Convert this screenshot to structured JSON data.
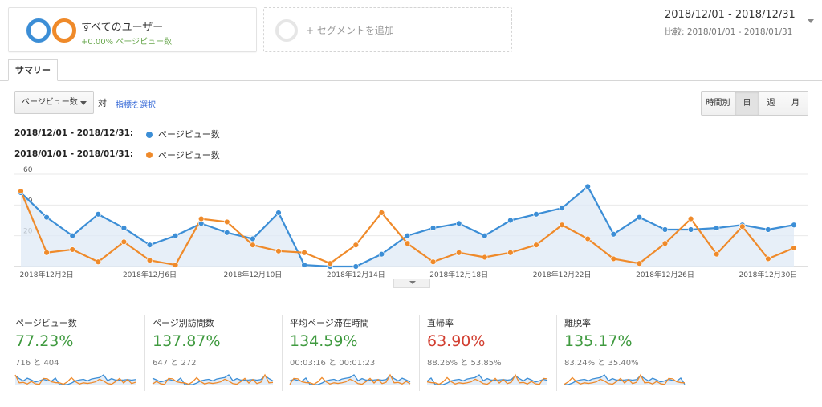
{
  "segments": {
    "all_users": {
      "title": "すべてのユーザー",
      "sub": "+0.00% ページビュー数"
    },
    "add_segment": {
      "label": "+ セグメントを追加"
    }
  },
  "date_range": {
    "main": "2018/12/01 - 2018/12/31",
    "compare": "比較: 2018/01/01 - 2018/01/31"
  },
  "tabs": {
    "summary": "サマリー"
  },
  "controls": {
    "metric_select": "ページビュー数",
    "versus": "対",
    "choose_metric": "指標を選択",
    "periods": [
      "時間別",
      "日",
      "週",
      "月"
    ],
    "active_period": "日"
  },
  "legend": [
    {
      "range": "2018/12/01 - 2018/12/31:",
      "series": "ページビュー数",
      "color": "#3c8ed6"
    },
    {
      "range": "2018/01/01 - 2018/01/31:",
      "series": "ページビュー数",
      "color": "#ef8a2a"
    }
  ],
  "chart_data": {
    "type": "line",
    "x": [
      1,
      2,
      3,
      4,
      5,
      6,
      7,
      8,
      9,
      10,
      11,
      12,
      13,
      14,
      15,
      16,
      17,
      18,
      19,
      20,
      21,
      22,
      23,
      24,
      25,
      26,
      27,
      28,
      29,
      30,
      31
    ],
    "xticks": [
      {
        "x": 2,
        "label": "2018年12月2日"
      },
      {
        "x": 6,
        "label": "2018年12月6日"
      },
      {
        "x": 10,
        "label": "2018年12月10日"
      },
      {
        "x": 14,
        "label": "2018年12月14日"
      },
      {
        "x": 18,
        "label": "2018年12月18日"
      },
      {
        "x": 22,
        "label": "2018年12月22日"
      },
      {
        "x": 26,
        "label": "2018年12月26日"
      },
      {
        "x": 30,
        "label": "2018年12月30日"
      }
    ],
    "yticks": [
      20,
      40,
      60
    ],
    "ylim": [
      0,
      60
    ],
    "grid": true,
    "series": [
      {
        "name": "ページビュー数",
        "color": "#3c8ed6",
        "values": [
          48,
          32,
          20,
          34,
          25,
          14,
          20,
          28,
          22,
          18,
          35,
          1,
          0,
          0,
          8,
          20,
          25,
          28,
          20,
          30,
          34,
          38,
          52,
          21,
          32,
          24,
          24,
          25,
          27,
          24,
          27
        ]
      },
      {
        "name": "ページビュー数",
        "color": "#ef8a2a",
        "values": [
          49,
          9,
          11,
          3,
          16,
          4,
          1,
          31,
          29,
          14,
          10,
          9,
          2,
          14,
          35,
          15,
          3,
          9,
          6,
          9,
          14,
          27,
          18,
          5,
          2,
          15,
          31,
          8,
          26,
          5,
          12
        ]
      }
    ]
  },
  "scorecards": [
    {
      "title": "ページビュー数",
      "value": "77.23%",
      "detail": "716 と 404",
      "color": "#3f9a3f"
    },
    {
      "title": "ページ別訪問数",
      "value": "137.87%",
      "detail": "647 と 272",
      "color": "#3f9a3f"
    },
    {
      "title": "平均ページ滞在時間",
      "value": "134.59%",
      "detail": "00:03:16 と 00:01:23",
      "color": "#3f9a3f"
    },
    {
      "title": "直帰率",
      "value": "63.90%",
      "detail": "88.26% と 53.85%",
      "color": "#d23f31"
    },
    {
      "title": "離脱率",
      "value": "135.17%",
      "detail": "83.24% と 35.40%",
      "color": "#3f9a3f"
    }
  ]
}
